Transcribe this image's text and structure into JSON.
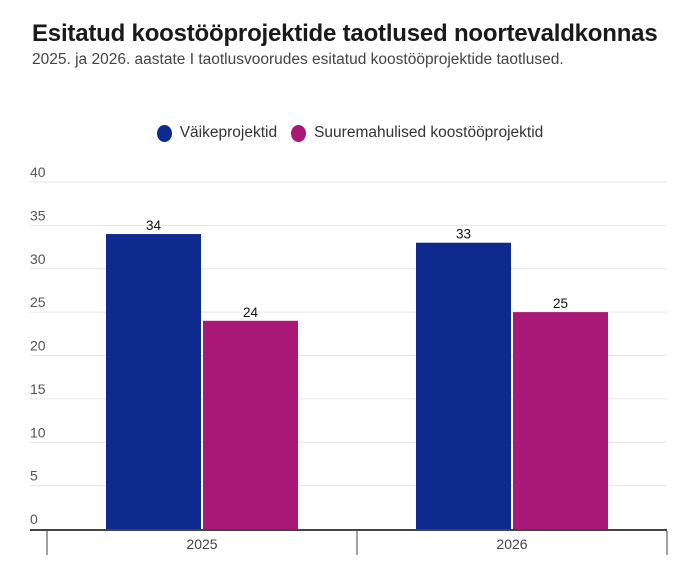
{
  "chart_data": {
    "type": "bar",
    "title": "Esitatud koostööprojektide taotlused noortevaldkonnas",
    "subtitle": "2025. ja 2026. aastate I taotlusvoorudes esitatud koostööprojektide taotlused.",
    "categories": [
      "2025",
      "2026"
    ],
    "series": [
      {
        "name": "Väikeprojektid",
        "color": "#0f2a8f",
        "values": [
          34,
          33
        ]
      },
      {
        "name": "Suuremahulised koostööprojektid",
        "color": "#a91876",
        "values": [
          24,
          25
        ]
      }
    ],
    "yticks": [
      0,
      5,
      10,
      15,
      20,
      25,
      30,
      35,
      40
    ],
    "ylim": [
      0,
      40
    ],
    "grid": true,
    "legend": "top-center",
    "xlabel": "",
    "ylabel": ""
  }
}
